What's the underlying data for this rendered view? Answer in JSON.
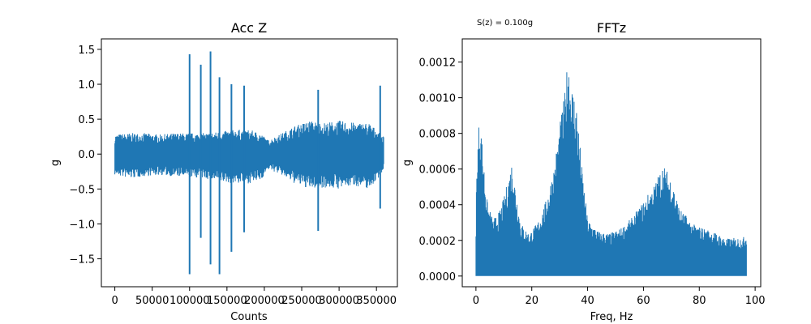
{
  "colors": {
    "series": "#1f77b4",
    "axes": "#000000",
    "background": "#ffffff"
  },
  "chart_data": [
    {
      "type": "line",
      "title": "Acc Z",
      "xlabel": "Counts",
      "ylabel": "g",
      "xlim": [
        -18000,
        378000
      ],
      "ylim": [
        -1.9,
        1.65
      ],
      "grid": false,
      "x_ticks": [
        {
          "value": 0,
          "label": "0"
        },
        {
          "value": 50000,
          "label": "50000"
        },
        {
          "value": 100000,
          "label": "100000"
        },
        {
          "value": 150000,
          "label": "150000"
        },
        {
          "value": 200000,
          "label": "200000"
        },
        {
          "value": 250000,
          "label": "250000"
        },
        {
          "value": 300000,
          "label": "300000"
        },
        {
          "value": 350000,
          "label": "350000"
        }
      ],
      "y_ticks": [
        {
          "value": -1.5,
          "label": "−1.5"
        },
        {
          "value": -1.0,
          "label": "−1.0"
        },
        {
          "value": -0.5,
          "label": "−0.5"
        },
        {
          "value": 0.0,
          "label": "0.0"
        },
        {
          "value": 0.5,
          "label": "0.5"
        },
        {
          "value": 1.0,
          "label": "1.0"
        },
        {
          "value": 1.5,
          "label": "1.5"
        }
      ],
      "series": [
        {
          "envelope": [
            {
              "x": 0,
              "min": -0.3,
              "max": 0.28
            },
            {
              "x": 20000,
              "min": -0.35,
              "max": 0.3
            },
            {
              "x": 40000,
              "min": -0.32,
              "max": 0.3
            },
            {
              "x": 60000,
              "min": -0.3,
              "max": 0.28
            },
            {
              "x": 80000,
              "min": -0.32,
              "max": 0.3
            },
            {
              "x": 100000,
              "min": -0.33,
              "max": 0.3
            },
            {
              "x": 120000,
              "min": -0.35,
              "max": 0.3
            },
            {
              "x": 140000,
              "min": -0.4,
              "max": 0.32
            },
            {
              "x": 160000,
              "min": -0.42,
              "max": 0.35
            },
            {
              "x": 180000,
              "min": -0.42,
              "max": 0.35
            },
            {
              "x": 195000,
              "min": -0.38,
              "max": 0.3
            },
            {
              "x": 205000,
              "min": -0.22,
              "max": 0.2
            },
            {
              "x": 220000,
              "min": -0.28,
              "max": 0.28
            },
            {
              "x": 240000,
              "min": -0.42,
              "max": 0.4
            },
            {
              "x": 260000,
              "min": -0.5,
              "max": 0.48
            },
            {
              "x": 280000,
              "min": -0.48,
              "max": 0.45
            },
            {
              "x": 300000,
              "min": -0.5,
              "max": 0.48
            },
            {
              "x": 320000,
              "min": -0.45,
              "max": 0.45
            },
            {
              "x": 340000,
              "min": -0.5,
              "max": 0.45
            },
            {
              "x": 360000,
              "min": -0.25,
              "max": 0.25
            }
          ],
          "spikes": [
            {
              "x": 100000,
              "min": -1.72,
              "max": 1.43
            },
            {
              "x": 115000,
              "min": -1.2,
              "max": 1.28
            },
            {
              "x": 128000,
              "min": -1.58,
              "max": 1.47
            },
            {
              "x": 140000,
              "min": -1.72,
              "max": 1.1
            },
            {
              "x": 156000,
              "min": -1.4,
              "max": 1.0
            },
            {
              "x": 173000,
              "min": -1.12,
              "max": 0.98
            },
            {
              "x": 272000,
              "min": -1.1,
              "max": 0.92
            },
            {
              "x": 355000,
              "min": -0.78,
              "max": 0.98
            }
          ]
        }
      ]
    },
    {
      "type": "line",
      "title": "FFTz",
      "xlabel": "Freq, Hz",
      "ylabel": "g",
      "xlim": [
        -4.9,
        102
      ],
      "ylim": [
        -6e-05,
        0.00133
      ],
      "grid": false,
      "annotation": "S(z) = 0.100g",
      "x_ticks": [
        {
          "value": 0,
          "label": "0"
        },
        {
          "value": 20,
          "label": "20"
        },
        {
          "value": 40,
          "label": "40"
        },
        {
          "value": 60,
          "label": "60"
        },
        {
          "value": 80,
          "label": "80"
        },
        {
          "value": 100,
          "label": "100"
        }
      ],
      "y_ticks": [
        {
          "value": 0.0,
          "label": "0.0000"
        },
        {
          "value": 0.0002,
          "label": "0.0002"
        },
        {
          "value": 0.0004,
          "label": "0.0004"
        },
        {
          "value": 0.0006,
          "label": "0.0006"
        },
        {
          "value": 0.0008,
          "label": "0.0008"
        },
        {
          "value": 0.001,
          "label": "0.0010"
        },
        {
          "value": 0.0012,
          "label": "0.0012"
        }
      ],
      "series": [
        {
          "envelope": [
            {
              "x": 0,
              "max": 0.00045
            },
            {
              "x": 0.5,
              "max": 0.0007
            },
            {
              "x": 1.2,
              "max": 0.00091
            },
            {
              "x": 2,
              "max": 0.0008
            },
            {
              "x": 3,
              "max": 0.0006
            },
            {
              "x": 4,
              "max": 0.00042
            },
            {
              "x": 6,
              "max": 0.00032
            },
            {
              "x": 8,
              "max": 0.00035
            },
            {
              "x": 10,
              "max": 0.00044
            },
            {
              "x": 12,
              "max": 0.00058
            },
            {
              "x": 13,
              "max": 0.00066
            },
            {
              "x": 14,
              "max": 0.00052
            },
            {
              "x": 16,
              "max": 0.0003
            },
            {
              "x": 19,
              "max": 0.00024
            },
            {
              "x": 22,
              "max": 0.0003
            },
            {
              "x": 25,
              "max": 0.00042
            },
            {
              "x": 28,
              "max": 0.00062
            },
            {
              "x": 30,
              "max": 0.00085
            },
            {
              "x": 32,
              "max": 0.00105
            },
            {
              "x": 33,
              "max": 0.00126
            },
            {
              "x": 34,
              "max": 0.0011
            },
            {
              "x": 36,
              "max": 0.00098
            },
            {
              "x": 38,
              "max": 0.0006
            },
            {
              "x": 40,
              "max": 0.00032
            },
            {
              "x": 44,
              "max": 0.00025
            },
            {
              "x": 48,
              "max": 0.00024
            },
            {
              "x": 52,
              "max": 0.00027
            },
            {
              "x": 56,
              "max": 0.00033
            },
            {
              "x": 60,
              "max": 0.00042
            },
            {
              "x": 64,
              "max": 0.00052
            },
            {
              "x": 67,
              "max": 0.00063
            },
            {
              "x": 70,
              "max": 0.00055
            },
            {
              "x": 73,
              "max": 0.00038
            },
            {
              "x": 78,
              "max": 0.00029
            },
            {
              "x": 85,
              "max": 0.00025
            },
            {
              "x": 90,
              "max": 0.00021
            },
            {
              "x": 96,
              "max": 0.00022
            },
            {
              "x": 97,
              "max": 0.00024
            }
          ]
        }
      ]
    }
  ]
}
